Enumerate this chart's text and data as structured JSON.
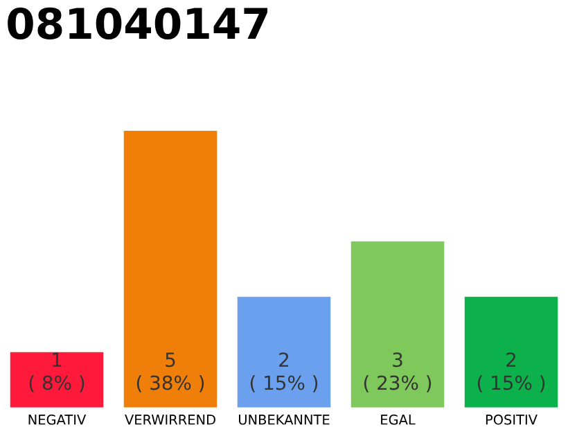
{
  "chart_data": {
    "type": "bar",
    "title": "081040147",
    "categories": [
      "NEGATIV",
      "VERWIRREND",
      "UNBEKANNTE",
      "EGAL",
      "POSITIV"
    ],
    "series": [
      {
        "colors": [
          "#ff1a3c",
          "#f07f0a",
          "#6aa0ee",
          "#7ec85c",
          "#0db14b"
        ],
        "values": [
          1,
          5,
          2,
          3,
          2
        ],
        "value_labels": [
          "1\n( 8% )",
          "5\n( 38% )",
          "2\n( 15% )",
          "3\n( 23% )",
          "2\n( 15% )"
        ]
      }
    ],
    "tick_labels": "x"
  }
}
